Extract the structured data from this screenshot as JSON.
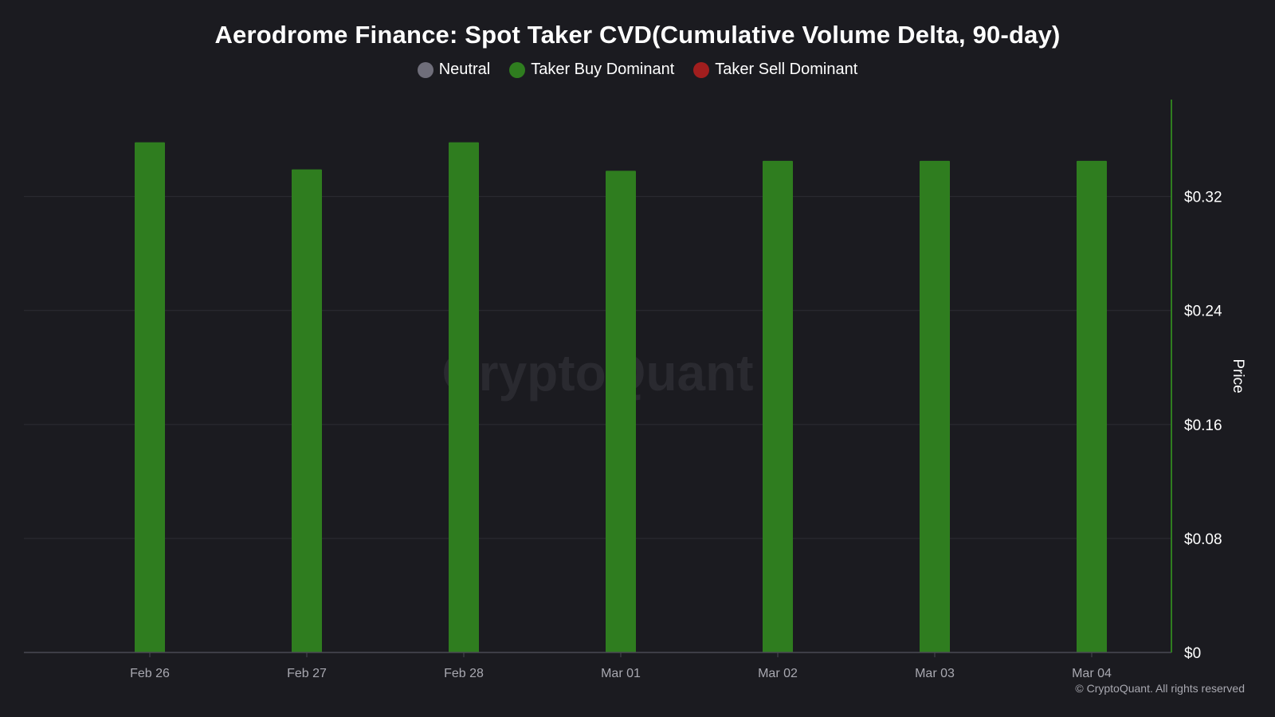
{
  "title": "Aerodrome Finance: Spot Taker CVD(Cumulative Volume Delta, 90-day)",
  "legend": [
    {
      "label": "Neutral",
      "color": "#6f6e7a"
    },
    {
      "label": "Taker Buy Dominant",
      "color": "#2f7d1f"
    },
    {
      "label": "Taker Sell Dominant",
      "color": "#a11e1e"
    }
  ],
  "watermark": "CryptoQuant",
  "copyright": "© CryptoQuant. All rights reserved",
  "chart_data": {
    "type": "bar",
    "categories": [
      "Feb 26",
      "Feb 27",
      "Feb 28",
      "Mar 01",
      "Mar 02",
      "Mar 03",
      "Mar 04"
    ],
    "series": [
      {
        "values": [
          0.358,
          0.339,
          0.358,
          0.338,
          0.345,
          0.345,
          0.345
        ],
        "state": [
          "Taker Buy Dominant",
          "Taker Buy Dominant",
          "Taker Buy Dominant",
          "Taker Buy Dominant",
          "Taker Buy Dominant",
          "Taker Buy Dominant",
          "Taker Buy Dominant"
        ],
        "color": "#2f7d1f"
      }
    ],
    "xlabel": "",
    "ylabel": "Price",
    "ylim": [
      0,
      0.388
    ],
    "yticks": [
      0,
      0.08,
      0.16,
      0.24,
      0.32
    ],
    "ytick_labels": [
      "$0",
      "$0.08",
      "$0.16",
      "$0.24",
      "$0.32"
    ],
    "y_axis_side": "right",
    "grid": true
  }
}
